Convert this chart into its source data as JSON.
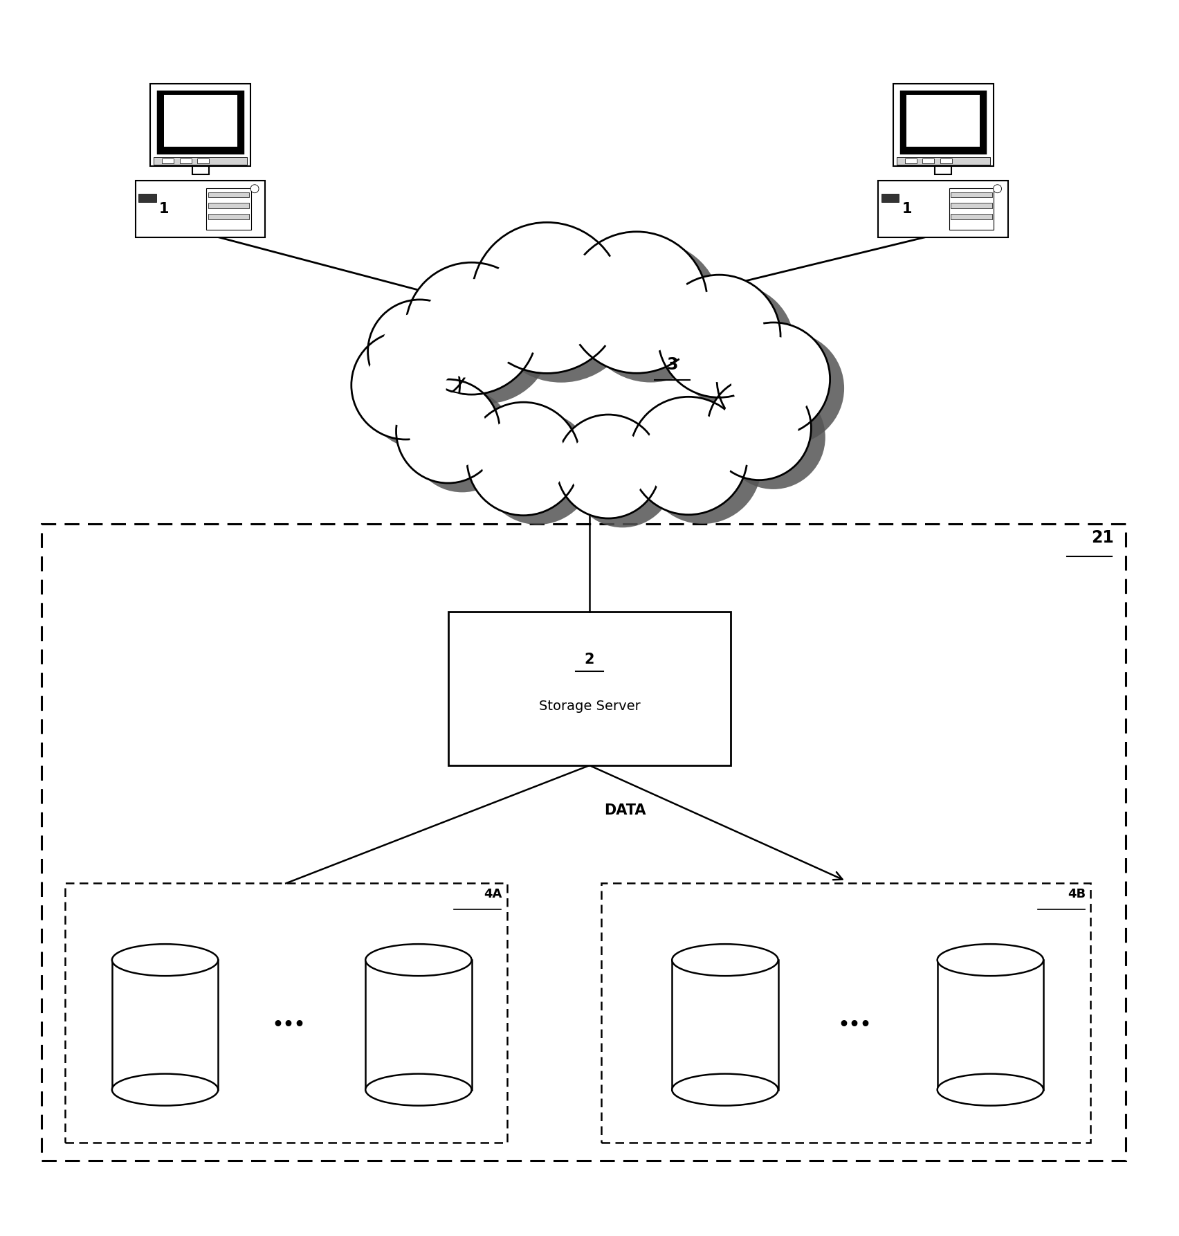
{
  "bg_color": "#ffffff",
  "fig_width": 17.04,
  "fig_height": 17.86,
  "dpi": 100,
  "labels": {
    "computer_label": "1",
    "cloud_label": "3",
    "server_label": "2",
    "server_text": "Storage Server",
    "data_label": "DATA",
    "box_label": "21",
    "storage_a_label": "4A",
    "storage_b_label": "4B"
  },
  "colors": {
    "line_color": "#000000",
    "fill_white": "#ffffff",
    "cloud_shadow": "#555555",
    "dashed_line": "#000000"
  }
}
